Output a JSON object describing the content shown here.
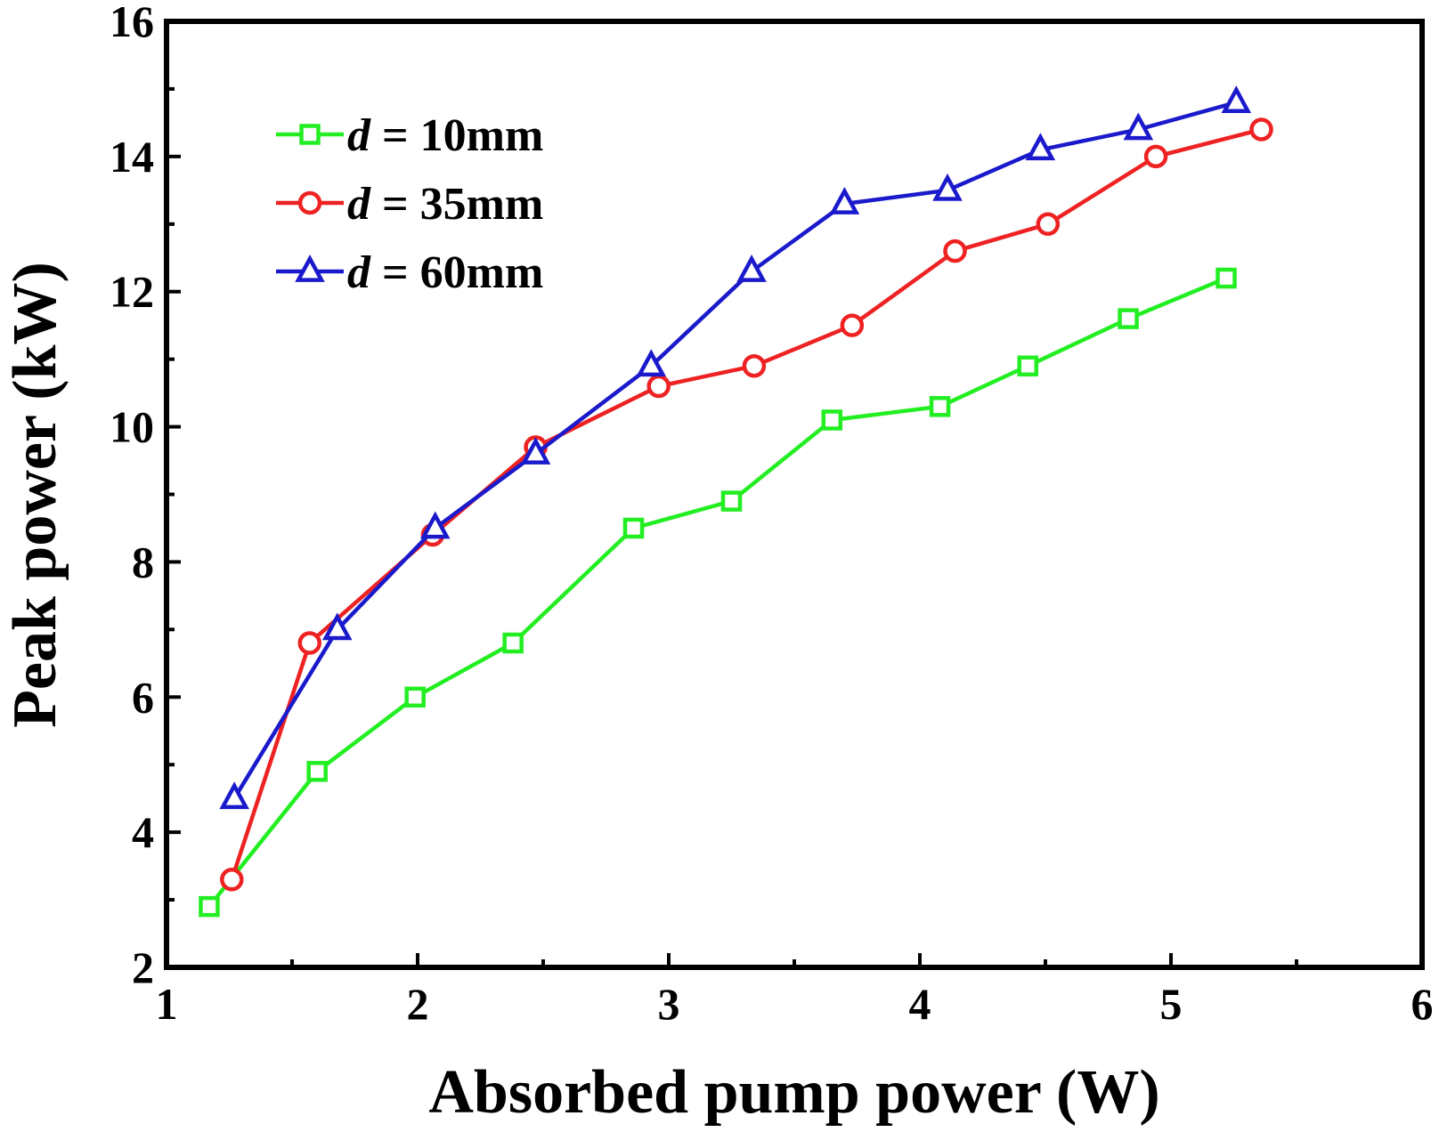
{
  "chart_data": {
    "type": "line",
    "title": "",
    "xlabel": "Absorbed pump power (W)",
    "ylabel": "Peak power (kW)",
    "xlim": [
      1,
      6
    ],
    "ylim": [
      2,
      16
    ],
    "xticks": [
      1,
      2,
      3,
      4,
      5,
      6
    ],
    "yticks": [
      2,
      4,
      6,
      8,
      10,
      12,
      14,
      16
    ],
    "xticks_minor": [
      1.5,
      2.5,
      3.5,
      4.5,
      5.5
    ],
    "yticks_minor": [
      3,
      5,
      7,
      9,
      11,
      13,
      15
    ],
    "grid": false,
    "legend_position": "top-left",
    "series": [
      {
        "name": "d = 10mm",
        "legend_var": "d",
        "legend_rest": " = 10mm",
        "color": "#22ee22",
        "marker": "square",
        "x": [
          1.17,
          1.6,
          1.99,
          2.38,
          2.86,
          3.25,
          3.65,
          4.08,
          4.43,
          4.83,
          5.22
        ],
        "y": [
          2.9,
          4.9,
          6.0,
          6.8,
          8.5,
          8.9,
          10.1,
          10.3,
          10.9,
          11.6,
          12.2
        ]
      },
      {
        "name": "d = 35mm",
        "legend_var": "d",
        "legend_rest": " = 35mm",
        "color": "#ee2222",
        "marker": "circle",
        "x": [
          1.26,
          1.57,
          2.06,
          2.47,
          2.96,
          3.34,
          3.73,
          4.14,
          4.51,
          4.94,
          5.36
        ],
        "y": [
          3.3,
          6.8,
          8.4,
          9.7,
          10.6,
          10.9,
          11.5,
          12.6,
          13.0,
          14.0,
          14.4
        ]
      },
      {
        "name": "d = 60mm",
        "legend_var": "d",
        "legend_rest": " = 60mm",
        "color": "#1a1acc",
        "marker": "triangle",
        "x": [
          1.27,
          1.68,
          2.07,
          2.47,
          2.93,
          3.33,
          3.7,
          4.11,
          4.48,
          4.87,
          5.26
        ],
        "y": [
          4.5,
          7.0,
          8.5,
          9.6,
          10.9,
          12.3,
          13.3,
          13.5,
          14.1,
          14.4,
          14.8
        ]
      }
    ]
  }
}
